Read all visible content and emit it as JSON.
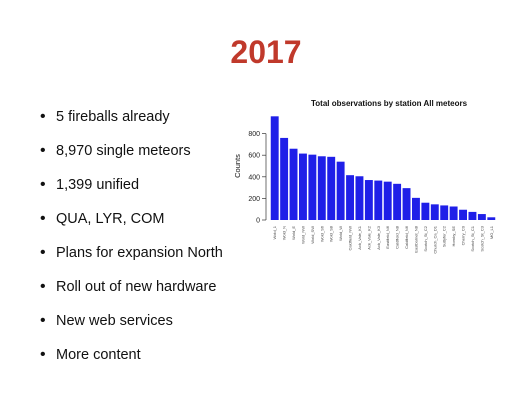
{
  "slide": {
    "title": "2017",
    "bullets": [
      "5 fireballs already",
      "8,970 single meteors",
      "1,399 unified",
      "QUA, LYR, COM",
      "Plans for expansion North",
      "Roll out of new hardware",
      "New web services",
      "More content"
    ]
  },
  "colors": {
    "title": "#c0392b",
    "bar": "#1f1fe8"
  },
  "chart_data": {
    "type": "bar",
    "title": "Total observations by station All meteors",
    "xlabel": "",
    "ylabel": "Counts",
    "ylim": [
      0,
      1000
    ],
    "yticks": [
      0,
      200,
      400,
      600,
      800
    ],
    "categories": [
      "Wold_1",
      "Wold_N",
      "Wold_E",
      "Wold_NW",
      "Wold_SW",
      "Wold_S6",
      "Wold_S8",
      "Wold_W",
      "Caldfield_NW",
      "Ack_Vale_K1",
      "Ack_Vale_K2",
      "Ack_Vale_K3",
      "Eastfield_N6",
      "Caldfield_N8",
      "Caldfield_N6",
      "Eastbarnet_N8",
      "Scotch_St_C2",
      "Church_Ca_D1",
      "Suttyfer_C2",
      "Hornby_SE",
      "Cherry_C0",
      "Scotch_St_C1",
      "Scotch_St_C3",
      "MO_L1"
    ],
    "values": [
      960,
      760,
      660,
      615,
      605,
      590,
      585,
      540,
      415,
      405,
      370,
      365,
      355,
      335,
      295,
      205,
      160,
      145,
      135,
      125,
      95,
      75,
      55,
      25
    ]
  }
}
